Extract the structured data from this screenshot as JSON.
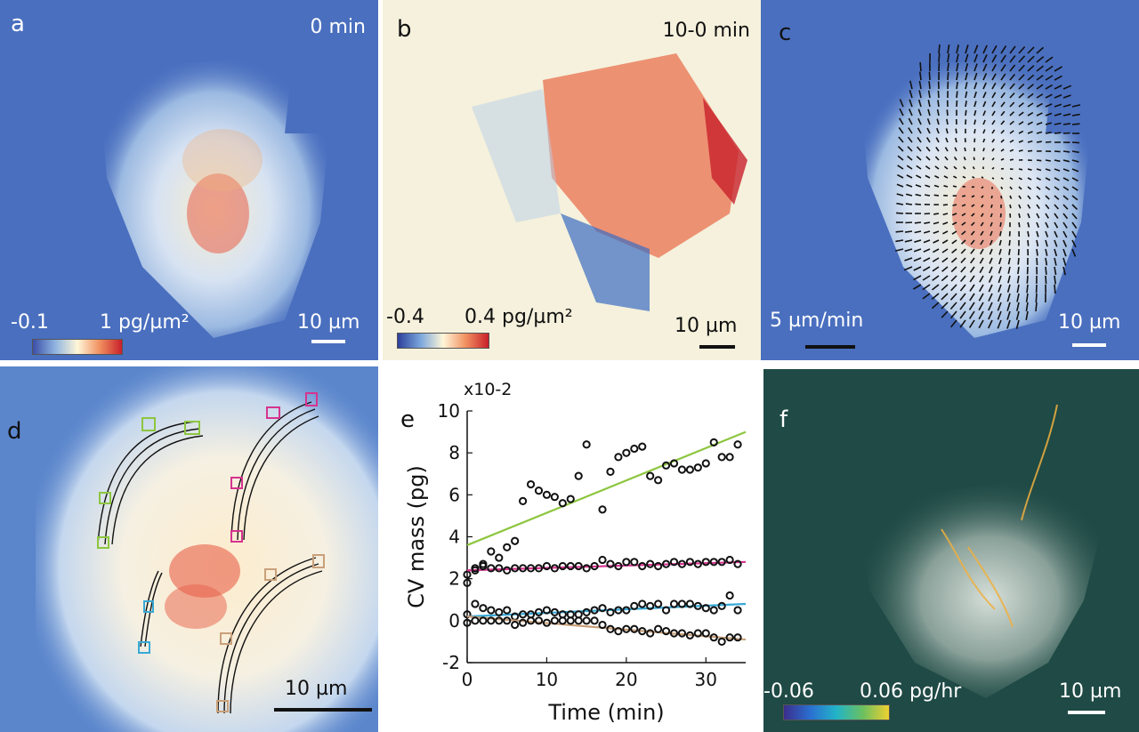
{
  "panels": {
    "a": {
      "letter": "a",
      "time": "0 min",
      "scale": "10 µm",
      "cbar_min": "-0.1",
      "cbar_max": "1 pg/µm²"
    },
    "b": {
      "letter": "b",
      "time": "10-0 min",
      "scale": "10 µm",
      "cbar_min": "-0.4",
      "cbar_max": "0.4 pg/µm²"
    },
    "c": {
      "letter": "c",
      "velocity": "5 µm/min",
      "scale": "10 µm"
    },
    "d": {
      "letter": "d",
      "scale": "10 µm"
    },
    "e": {
      "letter": "e"
    },
    "f": {
      "letter": "f",
      "scale": "10 µm",
      "cbar_min": "-0.06",
      "cbar_max": "0.06 pg/hr"
    }
  },
  "colors": {
    "cell_bg_blue": "#4a6fbf",
    "diverging_red": "#c8202a",
    "panel_f_bg": "#1f4a45",
    "green": "#8dc63f",
    "magenta": "#d6338f",
    "cyan": "#38a9d6",
    "tan": "#c9a07a"
  },
  "chart_data": {
    "type": "scatter",
    "xlabel": "Time (min)",
    "ylabel": "CV mass (pg)",
    "y_multiplier": "x10-2",
    "xlim": [
      0,
      35
    ],
    "ylim": [
      -2,
      10
    ],
    "xticks": [
      "0",
      "10",
      "20",
      "30"
    ],
    "yticks": [
      "-2",
      "0",
      "2",
      "4",
      "6",
      "8",
      "10"
    ],
    "series": [
      {
        "color": "#8dc63f",
        "fit": [
          [
            0,
            3.6
          ],
          [
            35,
            9.0
          ]
        ],
        "points": [
          [
            0,
            2.2
          ],
          [
            1,
            2.4
          ],
          [
            2,
            2.7
          ],
          [
            3,
            3.3
          ],
          [
            4,
            3.0
          ],
          [
            5,
            3.5
          ],
          [
            6,
            3.8
          ],
          [
            7,
            5.7
          ],
          [
            8,
            6.5
          ],
          [
            9,
            6.2
          ],
          [
            10,
            6.0
          ],
          [
            11,
            5.9
          ],
          [
            12,
            5.6
          ],
          [
            13,
            5.8
          ],
          [
            14,
            6.9
          ],
          [
            15,
            8.4
          ],
          [
            17,
            5.3
          ],
          [
            18,
            7.1
          ],
          [
            19,
            7.8
          ],
          [
            20,
            8.0
          ],
          [
            21,
            8.2
          ],
          [
            22,
            8.3
          ],
          [
            23,
            6.9
          ],
          [
            24,
            6.7
          ],
          [
            25,
            7.4
          ],
          [
            26,
            7.5
          ],
          [
            27,
            7.2
          ],
          [
            28,
            7.2
          ],
          [
            29,
            7.3
          ],
          [
            30,
            7.5
          ],
          [
            31,
            8.5
          ],
          [
            32,
            7.8
          ],
          [
            33,
            7.8
          ],
          [
            34,
            8.4
          ]
        ]
      },
      {
        "color": "#d6338f",
        "fit": [
          [
            0,
            2.4
          ],
          [
            35,
            2.8
          ]
        ],
        "points": [
          [
            0,
            1.8
          ],
          [
            1,
            2.5
          ],
          [
            2,
            2.6
          ],
          [
            3,
            2.5
          ],
          [
            4,
            2.5
          ],
          [
            5,
            2.4
          ],
          [
            6,
            2.5
          ],
          [
            7,
            2.5
          ],
          [
            8,
            2.5
          ],
          [
            9,
            2.5
          ],
          [
            10,
            2.6
          ],
          [
            11,
            2.5
          ],
          [
            12,
            2.6
          ],
          [
            13,
            2.6
          ],
          [
            14,
            2.6
          ],
          [
            15,
            2.5
          ],
          [
            16,
            2.6
          ],
          [
            17,
            2.9
          ],
          [
            18,
            2.7
          ],
          [
            19,
            2.6
          ],
          [
            20,
            2.8
          ],
          [
            21,
            2.8
          ],
          [
            22,
            2.6
          ],
          [
            23,
            2.7
          ],
          [
            24,
            2.6
          ],
          [
            25,
            2.7
          ],
          [
            26,
            2.8
          ],
          [
            27,
            2.7
          ],
          [
            28,
            2.8
          ],
          [
            29,
            2.7
          ],
          [
            30,
            2.8
          ],
          [
            31,
            2.8
          ],
          [
            32,
            2.8
          ],
          [
            33,
            2.9
          ],
          [
            34,
            2.7
          ]
        ]
      },
      {
        "color": "#38a9d6",
        "fit": [
          [
            0,
            0.2
          ],
          [
            35,
            0.8
          ]
        ],
        "points": [
          [
            0,
            0.3
          ],
          [
            1,
            0.8
          ],
          [
            2,
            0.6
          ],
          [
            3,
            0.5
          ],
          [
            4,
            0.4
          ],
          [
            5,
            0.5
          ],
          [
            6,
            0.2
          ],
          [
            7,
            0.3
          ],
          [
            8,
            0.3
          ],
          [
            9,
            0.4
          ],
          [
            10,
            0.5
          ],
          [
            11,
            0.4
          ],
          [
            12,
            0.3
          ],
          [
            13,
            0.3
          ],
          [
            14,
            0.3
          ],
          [
            15,
            0.4
          ],
          [
            16,
            0.5
          ],
          [
            17,
            0.6
          ],
          [
            18,
            0.4
          ],
          [
            19,
            0.5
          ],
          [
            20,
            0.5
          ],
          [
            21,
            0.7
          ],
          [
            22,
            0.8
          ],
          [
            23,
            0.7
          ],
          [
            24,
            0.8
          ],
          [
            25,
            0.5
          ],
          [
            26,
            0.8
          ],
          [
            27,
            0.8
          ],
          [
            28,
            0.8
          ],
          [
            29,
            0.7
          ],
          [
            30,
            0.6
          ],
          [
            31,
            0.5
          ],
          [
            32,
            0.7
          ],
          [
            33,
            1.2
          ],
          [
            34,
            0.5
          ]
        ]
      },
      {
        "color": "#c9a07a",
        "fit": [
          [
            0,
            0.2
          ],
          [
            35,
            -0.9
          ]
        ],
        "points": [
          [
            0,
            -0.1
          ],
          [
            1,
            0.0
          ],
          [
            2,
            0.0
          ],
          [
            3,
            0.0
          ],
          [
            4,
            0.0
          ],
          [
            5,
            0.0
          ],
          [
            6,
            -0.2
          ],
          [
            7,
            -0.1
          ],
          [
            8,
            0.0
          ],
          [
            9,
            0.0
          ],
          [
            10,
            -0.1
          ],
          [
            11,
            0.0
          ],
          [
            12,
            0.0
          ],
          [
            13,
            0.0
          ],
          [
            14,
            0.0
          ],
          [
            15,
            0.0
          ],
          [
            16,
            0.0
          ],
          [
            17,
            -0.2
          ],
          [
            18,
            -0.4
          ],
          [
            19,
            -0.5
          ],
          [
            20,
            -0.4
          ],
          [
            21,
            -0.4
          ],
          [
            22,
            -0.5
          ],
          [
            23,
            -0.6
          ],
          [
            24,
            -0.4
          ],
          [
            25,
            -0.5
          ],
          [
            26,
            -0.6
          ],
          [
            27,
            -0.6
          ],
          [
            28,
            -0.7
          ],
          [
            29,
            -0.6
          ],
          [
            30,
            -0.6
          ],
          [
            31,
            -0.8
          ],
          [
            32,
            -1.0
          ],
          [
            33,
            -0.8
          ],
          [
            34,
            -0.8
          ]
        ]
      }
    ]
  }
}
